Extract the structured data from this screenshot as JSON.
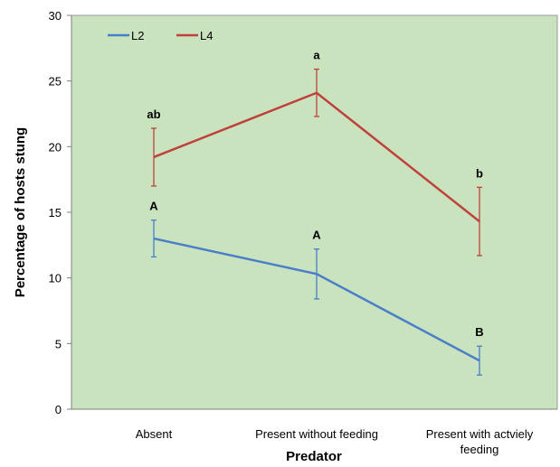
{
  "chart_data": {
    "type": "line",
    "xlabel": "Predator",
    "ylabel": "Percentage of hosts stung",
    "ylim": [
      0,
      30
    ],
    "yticks": [
      0,
      5,
      10,
      15,
      20,
      25,
      30
    ],
    "grid": false,
    "legend_position": "top-left",
    "background_color": "#c9e3bf",
    "categories": [
      [
        "Absent"
      ],
      [
        "Present without feeding"
      ],
      [
        "Present with actviely",
        "feeding"
      ]
    ],
    "series": [
      {
        "name": "L2",
        "color": "#4a7ec9",
        "values": [
          13.0,
          10.3,
          3.7
        ],
        "error": [
          1.4,
          1.9,
          1.1
        ],
        "labels": [
          "A",
          "A",
          "B"
        ]
      },
      {
        "name": "L4",
        "color": "#c0403c",
        "values": [
          19.2,
          24.1,
          14.3
        ],
        "error": [
          2.2,
          1.8,
          2.6
        ],
        "labels": [
          "ab",
          "a",
          "b"
        ]
      }
    ]
  }
}
